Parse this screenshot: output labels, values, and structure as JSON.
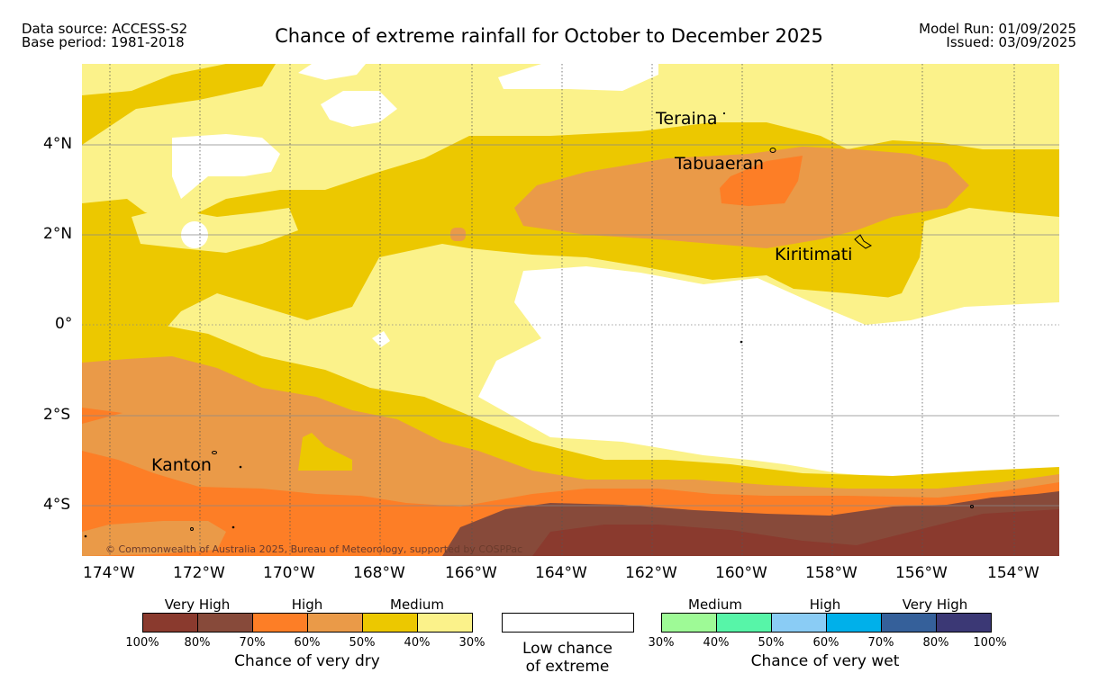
{
  "header": {
    "data_source": "Data source: ACCESS-S2",
    "base_period": "Base period: 1981-2018",
    "title": "Chance of extreme rainfall for October to December 2025",
    "model_run": "Model Run: 01/09/2025",
    "issued": "Issued: 03/09/2025"
  },
  "map": {
    "lat_ticks": [
      "4°N",
      "2°N",
      "0°",
      "2°S",
      "4°S"
    ],
    "lon_ticks": [
      "174°W",
      "172°W",
      "170°W",
      "168°W",
      "166°W",
      "164°W",
      "162°W",
      "160°W",
      "158°W",
      "156°W",
      "154°W"
    ],
    "places": [
      "Teraina",
      "Tabuaeran",
      "Kiritimati",
      "Kanton"
    ],
    "copyright": "© Commonwealth of Australia 2025, Bureau of Meteorology, supported by COSPPac"
  },
  "legend": {
    "dry": {
      "categories": [
        "Very High",
        "High",
        "Medium"
      ],
      "colors": [
        "#8a3a2e",
        "#874a3a",
        "#fd7e26",
        "#ea9a48",
        "#ecc800",
        "#fbf28a"
      ],
      "ticks": [
        "100%",
        "80%",
        "70%",
        "60%",
        "50%",
        "40%",
        "30%"
      ],
      "caption": "Chance of very dry"
    },
    "low": {
      "caption_line1": "Low chance",
      "caption_line2": "of extreme",
      "color": "#ffffff"
    },
    "wet": {
      "categories": [
        "Medium",
        "High",
        "Very High"
      ],
      "colors": [
        "#9efa96",
        "#57f5a8",
        "#8accf5",
        "#00b0ea",
        "#35609a",
        "#3b3875"
      ],
      "ticks": [
        "30%",
        "40%",
        "50%",
        "60%",
        "70%",
        "80%",
        "100%"
      ],
      "caption": "Chance of very wet"
    }
  }
}
